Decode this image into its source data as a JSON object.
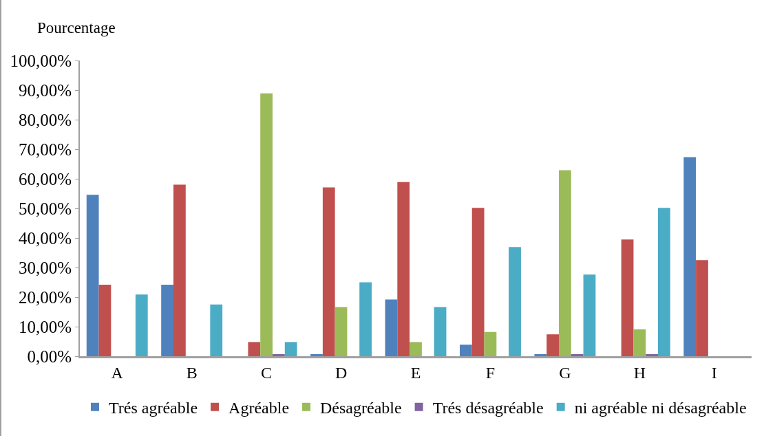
{
  "chart_data": {
    "type": "bar",
    "ylabel": "Pourcentage",
    "categories": [
      "A",
      "B",
      "C",
      "D",
      "E",
      "F",
      "G",
      "H",
      "I"
    ],
    "series": [
      {
        "name": "Trés agréable",
        "color": "#4f81bd",
        "values": [
          54.6,
          24.2,
          0,
          0.7,
          19.2,
          3.9,
          0.7,
          0,
          67.3
        ]
      },
      {
        "name": "Agréable",
        "color": "#c0504d",
        "values": [
          24.2,
          58.0,
          4.8,
          57.1,
          58.9,
          50.2,
          7.4,
          39.5,
          32.5
        ]
      },
      {
        "name": "Désagréable",
        "color": "#9bbb59",
        "values": [
          0,
          0,
          88.9,
          16.6,
          4.8,
          8.2,
          62.9,
          9.1,
          0
        ]
      },
      {
        "name": "Trés désagréable",
        "color": "#8064a2",
        "values": [
          0,
          0,
          0.7,
          0,
          0,
          0,
          0.7,
          0.7,
          0
        ]
      },
      {
        "name": "ni agréable ni désagréable",
        "color": "#4bacc6",
        "values": [
          20.9,
          17.5,
          4.8,
          25.0,
          16.6,
          36.9,
          27.6,
          50.2,
          0
        ]
      }
    ],
    "ylim": [
      0,
      100
    ],
    "yticks": [
      {
        "value": 0,
        "label": "0,00%"
      },
      {
        "value": 10,
        "label": "10,00%"
      },
      {
        "value": 20,
        "label": "20,00%"
      },
      {
        "value": 30,
        "label": "30,00%"
      },
      {
        "value": 40,
        "label": "40,00%"
      },
      {
        "value": 50,
        "label": "50,00%"
      },
      {
        "value": 60,
        "label": "60,00%"
      },
      {
        "value": 70,
        "label": "70,00%"
      },
      {
        "value": 80,
        "label": "80,00%"
      },
      {
        "value": 90,
        "label": "90,00%"
      },
      {
        "value": 100,
        "label": "100,00%"
      }
    ],
    "grid": false,
    "legend": "bottom"
  }
}
